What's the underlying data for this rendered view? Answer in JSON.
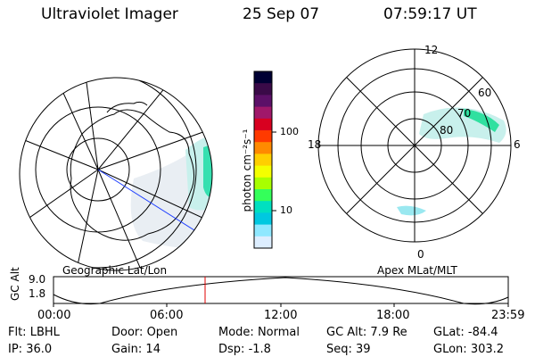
{
  "header": {
    "title": "Ultraviolet Imager",
    "date": "25 Sep 07",
    "time": "07:59:17 UT"
  },
  "geo_map": {
    "caption": "Geographic Lat/Lon"
  },
  "colorbar": {
    "unit_label": "photon cm⁻²s⁻¹",
    "ticks": [
      "100",
      "10"
    ],
    "colors": [
      "#000033",
      "#3a0a48",
      "#5c1068",
      "#a0186a",
      "#d80020",
      "#ff3a00",
      "#ff8a00",
      "#ffcf00",
      "#f4ff00",
      "#a8ff00",
      "#34ff5a",
      "#00e0c0",
      "#00c8e0",
      "#8fe8ff",
      "#ddeeff"
    ]
  },
  "apex_map": {
    "caption": "Apex MLat/MLT",
    "mlt_labels": [
      "12",
      "6",
      "0",
      "18"
    ],
    "mlat_labels": [
      "80",
      "70",
      "60"
    ]
  },
  "altitude_strip": {
    "axis_label": "GC Alt",
    "y_ticks": [
      "9.0",
      "1.8"
    ],
    "time_ticks": [
      "00:00",
      "06:00",
      "12:00",
      "18:00",
      "23:59"
    ]
  },
  "info": {
    "row1": [
      {
        "label": "Flt:",
        "value": "LBHL"
      },
      {
        "label": "Door:",
        "value": "Open"
      },
      {
        "label": "Mode:",
        "value": "Normal"
      },
      {
        "label": "GC Alt:",
        "value": "7.9 Re"
      },
      {
        "label": "GLat:",
        "value": "-84.4"
      }
    ],
    "row2": [
      {
        "label": "IP:",
        "value": "36.0"
      },
      {
        "label": "Gain:",
        "value": "14"
      },
      {
        "label": "Dsp:",
        "value": "-1.8"
      },
      {
        "label": "Seq:",
        "value": "39"
      },
      {
        "label": "GLon:",
        "value": "303.2"
      }
    ]
  }
}
